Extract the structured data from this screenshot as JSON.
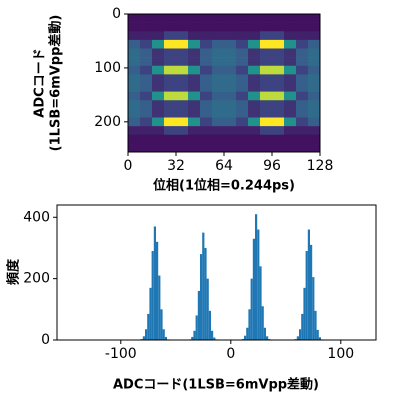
{
  "chart_data": [
    {
      "type": "heatmap",
      "xlabel": "位相(1位相=0.244ps)",
      "ylabel": [
        "ADCコード",
        "(1LSB=6mVpp差動)"
      ],
      "xlim": [
        0,
        128
      ],
      "xticks": [
        0,
        32,
        64,
        96,
        128
      ],
      "ylim": [
        256,
        0
      ],
      "yticks": [
        0,
        100,
        200
      ],
      "colormap": "viridis",
      "z": [
        [
          0.05,
          0.05,
          0.05,
          0.05,
          0.05,
          0.05,
          0.05,
          0.05,
          0.05,
          0.05,
          0.05,
          0.05,
          0.05,
          0.05,
          0.05,
          0.05
        ],
        [
          0.05,
          0.05,
          0.05,
          0.05,
          0.05,
          0.05,
          0.05,
          0.05,
          0.05,
          0.05,
          0.05,
          0.05,
          0.05,
          0.05,
          0.05,
          0.05
        ],
        [
          0.1,
          0.1,
          0.1,
          0.2,
          0.2,
          0.1,
          0.1,
          0.1,
          0.1,
          0.1,
          0.1,
          0.2,
          0.2,
          0.1,
          0.1,
          0.1
        ],
        [
          0.3,
          0.2,
          0.5,
          1,
          1,
          0.5,
          0.2,
          0.3,
          0.3,
          0.2,
          0.5,
          1,
          1,
          0.5,
          0.2,
          0.3
        ],
        [
          0.35,
          0.3,
          0.15,
          0.2,
          0.2,
          0.15,
          0.3,
          0.35,
          0.35,
          0.3,
          0.15,
          0.2,
          0.2,
          0.15,
          0.3,
          0.35
        ],
        [
          0.35,
          0.3,
          0.15,
          0.2,
          0.2,
          0.15,
          0.3,
          0.35,
          0.35,
          0.3,
          0.15,
          0.2,
          0.2,
          0.15,
          0.3,
          0.35
        ],
        [
          0.3,
          0.2,
          0.5,
          0.9,
          0.9,
          0.5,
          0.2,
          0.3,
          0.3,
          0.2,
          0.5,
          0.9,
          0.9,
          0.5,
          0.2,
          0.3
        ],
        [
          0.35,
          0.3,
          0.15,
          0.2,
          0.2,
          0.15,
          0.3,
          0.35,
          0.35,
          0.3,
          0.15,
          0.2,
          0.2,
          0.15,
          0.3,
          0.35
        ],
        [
          0.35,
          0.3,
          0.15,
          0.2,
          0.2,
          0.15,
          0.3,
          0.35,
          0.35,
          0.3,
          0.15,
          0.2,
          0.2,
          0.15,
          0.3,
          0.35
        ],
        [
          0.3,
          0.2,
          0.5,
          0.9,
          0.9,
          0.5,
          0.2,
          0.3,
          0.3,
          0.2,
          0.5,
          0.9,
          0.9,
          0.5,
          0.2,
          0.3
        ],
        [
          0.35,
          0.3,
          0.15,
          0.2,
          0.2,
          0.15,
          0.3,
          0.35,
          0.35,
          0.3,
          0.15,
          0.2,
          0.2,
          0.15,
          0.3,
          0.35
        ],
        [
          0.35,
          0.3,
          0.15,
          0.2,
          0.2,
          0.15,
          0.3,
          0.35,
          0.35,
          0.3,
          0.15,
          0.2,
          0.2,
          0.15,
          0.3,
          0.35
        ],
        [
          0.3,
          0.2,
          0.5,
          1,
          1,
          0.5,
          0.2,
          0.3,
          0.3,
          0.2,
          0.5,
          1,
          1,
          0.5,
          0.2,
          0.3
        ],
        [
          0.1,
          0.1,
          0.1,
          0.2,
          0.2,
          0.1,
          0.1,
          0.1,
          0.1,
          0.1,
          0.1,
          0.2,
          0.2,
          0.1,
          0.1,
          0.1
        ],
        [
          0.05,
          0.05,
          0.05,
          0.05,
          0.05,
          0.05,
          0.05,
          0.05,
          0.05,
          0.05,
          0.05,
          0.05,
          0.05,
          0.05,
          0.05,
          0.05
        ],
        [
          0.05,
          0.05,
          0.05,
          0.05,
          0.05,
          0.05,
          0.05,
          0.05,
          0.05,
          0.05,
          0.05,
          0.05,
          0.05,
          0.05,
          0.05,
          0.05
        ]
      ]
    },
    {
      "type": "histogram",
      "xlabel": "ADCコード(1LSB=6mVpp差動)",
      "ylabel": "頻度",
      "color": "#1f77b4",
      "xlim": [
        -158,
        132
      ],
      "xticks": [
        -100,
        0,
        100
      ],
      "ylim": [
        0,
        440
      ],
      "yticks": [
        0,
        200,
        400
      ],
      "bins": [
        -90,
        -88,
        -86,
        -84,
        -82,
        -80,
        -78,
        -76,
        -74,
        -72,
        -70,
        -68,
        -66,
        -64,
        -62,
        -60,
        -58,
        -56,
        -54,
        -52,
        -50,
        -48,
        -46,
        -44,
        -42,
        -40,
        -38,
        -36,
        -34,
        -32,
        -30,
        -28,
        -26,
        -24,
        -22,
        -20,
        -18,
        -16,
        -14,
        -12,
        -10,
        -8,
        -6,
        -4,
        -2,
        0,
        2,
        4,
        6,
        8,
        10,
        12,
        14,
        16,
        18,
        20,
        22,
        24,
        26,
        28,
        30,
        32,
        34,
        36,
        38,
        40,
        42,
        44,
        46,
        48,
        50,
        52,
        54,
        56,
        58,
        60,
        62,
        64,
        66,
        68,
        70,
        72,
        74,
        76,
        78,
        80,
        82,
        84,
        86,
        88,
        90
      ],
      "counts": [
        0,
        0,
        0,
        0,
        3,
        12,
        35,
        85,
        170,
        290,
        370,
        320,
        210,
        100,
        35,
        10,
        2,
        0,
        0,
        0,
        0,
        0,
        0,
        0,
        0,
        0,
        2,
        10,
        30,
        80,
        160,
        280,
        350,
        300,
        200,
        95,
        30,
        8,
        2,
        0,
        0,
        0,
        0,
        0,
        0,
        0,
        0,
        0,
        0,
        0,
        3,
        14,
        40,
        100,
        200,
        330,
        410,
        360,
        240,
        110,
        40,
        12,
        3,
        0,
        0,
        0,
        0,
        0,
        0,
        0,
        0,
        0,
        0,
        0,
        3,
        12,
        35,
        85,
        170,
        290,
        360,
        310,
        205,
        95,
        33,
        9,
        2,
        0,
        0,
        0
      ]
    }
  ]
}
